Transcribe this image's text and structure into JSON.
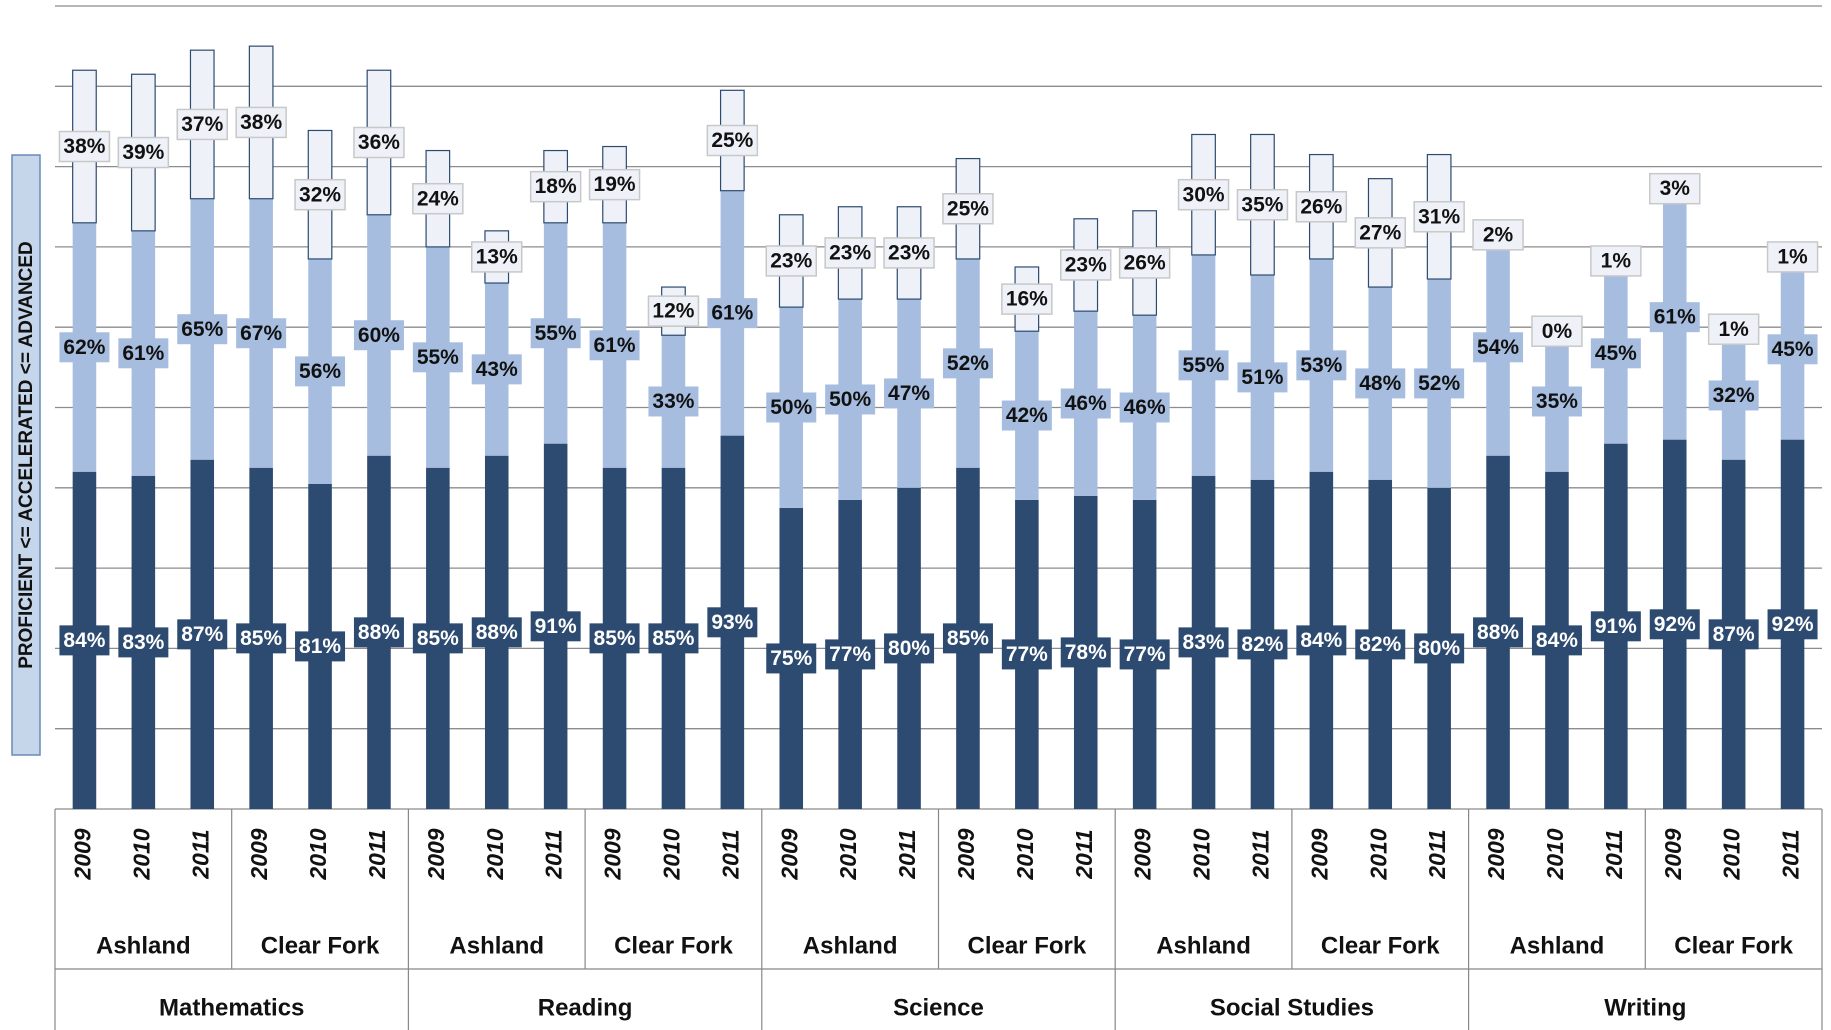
{
  "chart_data": {
    "type": "stacked_bar",
    "y_label": "PROFICIENT <= ACCELERATED <= ADVANCED",
    "categories": [
      "2009",
      "2010",
      "2011",
      "2009",
      "2010",
      "2011",
      "2009",
      "2010",
      "2011",
      "2009",
      "2010",
      "2011",
      "2009",
      "2010",
      "2011",
      "2009",
      "2010",
      "2011",
      "2009",
      "2010",
      "2011",
      "2009",
      "2010",
      "2011",
      "2009",
      "2010",
      "2011",
      "2009",
      "2010",
      "2011"
    ],
    "groups": [
      "Ashland",
      "Clear Fork",
      "Ashland",
      "Clear Fork",
      "Ashland",
      "Clear Fork",
      "Ashland",
      "Clear Fork",
      "Ashland",
      "Clear Fork"
    ],
    "supergroups": [
      "Mathematics",
      "Reading",
      "Science",
      "Social Studies",
      "Writing"
    ],
    "series": [
      {
        "color": "#2d4a70",
        "label_color": "#ffffff",
        "values": [
          84,
          83,
          87,
          85,
          81,
          88,
          85,
          88,
          91,
          85,
          85,
          93,
          75,
          77,
          80,
          85,
          77,
          78,
          77,
          83,
          82,
          84,
          82,
          80,
          88,
          84,
          91,
          92,
          87,
          92
        ],
        "value_labels": [
          "84%",
          "83%",
          "87%",
          "85%",
          "81%",
          "88%",
          "85%",
          "88%",
          "91%",
          "85%",
          "85%",
          "93%",
          "75%",
          "77%",
          "80%",
          "85%",
          "77%",
          "78%",
          "77%",
          "83%",
          "82%",
          "84%",
          "82%",
          "80%",
          "88%",
          "84%",
          "91%",
          "92%",
          "87%",
          "92%"
        ]
      },
      {
        "color": "#a6bde0",
        "label_color": "#111111",
        "values": [
          62,
          61,
          65,
          67,
          56,
          60,
          55,
          43,
          55,
          61,
          33,
          61,
          50,
          50,
          47,
          52,
          42,
          46,
          46,
          55,
          51,
          53,
          48,
          52,
          54,
          35,
          45,
          61,
          32,
          45
        ],
        "value_labels": [
          "62%",
          "61%",
          "65%",
          "67%",
          "56%",
          "60%",
          "55%",
          "43%",
          "55%",
          "61%",
          "33%",
          "61%",
          "50%",
          "50%",
          "47%",
          "52%",
          "42%",
          "46%",
          "46%",
          "55%",
          "51%",
          "53%",
          "48%",
          "52%",
          "54%",
          "35%",
          "45%",
          "61%",
          "32%",
          "45%"
        ]
      },
      {
        "color": "#eef2f8",
        "label_color": "#111111",
        "values": [
          38,
          39,
          37,
          38,
          32,
          36,
          24,
          13,
          18,
          19,
          12,
          25,
          23,
          23,
          23,
          25,
          16,
          23,
          26,
          30,
          35,
          26,
          27,
          31,
          2,
          0,
          1,
          3,
          1,
          1
        ],
        "value_labels": [
          "38%",
          "39%",
          "37%",
          "38%",
          "32%",
          "36%",
          "24%",
          "13%",
          "18%",
          "19%",
          "12%",
          "25%",
          "23%",
          "23%",
          "23%",
          "25%",
          "16%",
          "23%",
          "26%",
          "30%",
          "35%",
          "26%",
          "27%",
          "31%",
          "2%",
          "0%",
          "1%",
          "3%",
          "1%",
          "1%"
        ]
      }
    ],
    "ylim": [
      0,
      200
    ],
    "yticks": [
      0,
      20,
      40,
      60,
      80,
      100,
      120,
      140,
      160,
      180,
      200
    ],
    "grid": true
  }
}
